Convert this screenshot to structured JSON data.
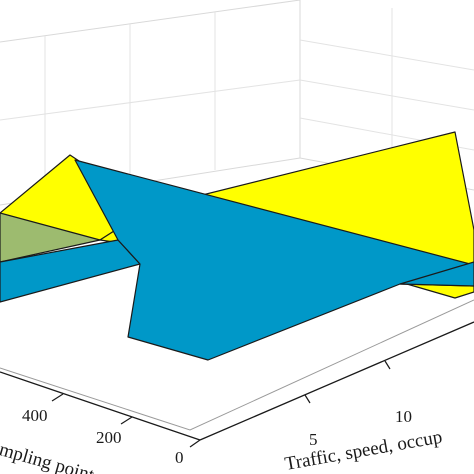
{
  "chart_data": {
    "type": "surface3d",
    "title": "",
    "xlabel": "Traffic, speed, occup",
    "ylabel": "mpling point",
    "zlabel": "",
    "x_ticks": [
      "5",
      "10"
    ],
    "y_ticks": [
      "0",
      "200",
      "400"
    ],
    "grid": true,
    "colors": {
      "yellow_surface": "#ffff00",
      "blue_surface": "#0098c8",
      "overlap_green": "#9dbb6f",
      "grid": "#d9d9d9",
      "edge": "#1a1a1a"
    },
    "series": [
      {
        "color": "yellow"
      },
      {
        "color": "blue"
      }
    ]
  }
}
